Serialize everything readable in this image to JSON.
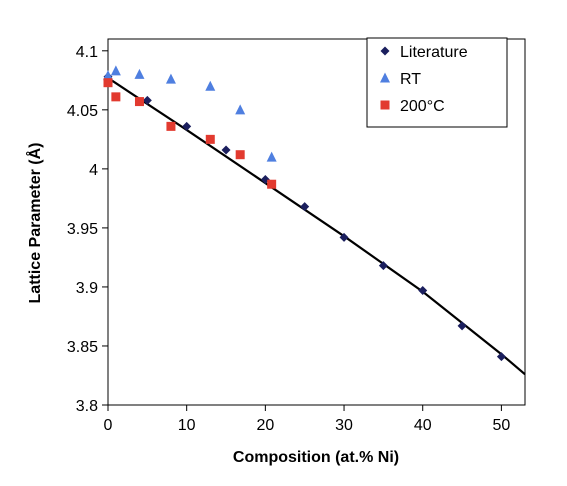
{
  "chart_data": {
    "type": "scatter",
    "xlabel": "Composition (at.% Ni)",
    "ylabel": "Lattice Parameter (Å)",
    "xlim": [
      0,
      53
    ],
    "ylim": [
      3.8,
      4.11
    ],
    "x_ticks": [
      0,
      10,
      20,
      30,
      40,
      50
    ],
    "y_ticks": [
      3.8,
      3.85,
      3.9,
      3.95,
      4,
      4.05,
      4.1
    ],
    "x_tick_labels": [
      "0",
      "10",
      "20",
      "30",
      "40",
      "50"
    ],
    "y_tick_labels": [
      "3.8",
      "3.85",
      "3.9",
      "3.95",
      "4",
      "4.05",
      "4.1"
    ],
    "grid": false,
    "legend_position": "top-right",
    "series": [
      {
        "name": "Literature",
        "marker": "diamond",
        "color": "#1b1f5e",
        "points": [
          [
            0,
            4.078
          ],
          [
            5,
            4.058
          ],
          [
            10,
            4.036
          ],
          [
            15,
            4.016
          ],
          [
            20,
            3.991
          ],
          [
            25,
            3.968
          ],
          [
            30,
            3.942
          ],
          [
            35,
            3.918
          ],
          [
            40,
            3.897
          ],
          [
            45,
            3.867
          ],
          [
            50,
            3.841
          ]
        ]
      },
      {
        "name": "RT",
        "marker": "triangle",
        "color": "#4f7fe0",
        "points": [
          [
            0,
            4.079
          ],
          [
            1,
            4.083
          ],
          [
            4,
            4.08
          ],
          [
            8,
            4.076
          ],
          [
            13,
            4.07
          ],
          [
            16.8,
            4.05
          ],
          [
            20.8,
            4.01
          ]
        ]
      },
      {
        "name": "200°C",
        "marker": "square",
        "color": "#e23a2f",
        "points": [
          [
            0,
            4.073
          ],
          [
            1,
            4.061
          ],
          [
            4,
            4.057
          ],
          [
            8,
            4.036
          ],
          [
            13,
            4.025
          ],
          [
            16.8,
            4.012
          ],
          [
            20.8,
            3.987
          ]
        ]
      }
    ],
    "fit_line": {
      "color": "#000000",
      "points": [
        [
          0,
          4.077
        ],
        [
          10,
          4.033
        ],
        [
          20,
          3.988
        ],
        [
          30,
          3.943
        ],
        [
          40,
          3.896
        ],
        [
          50,
          3.843
        ],
        [
          53,
          3.826
        ]
      ]
    }
  }
}
